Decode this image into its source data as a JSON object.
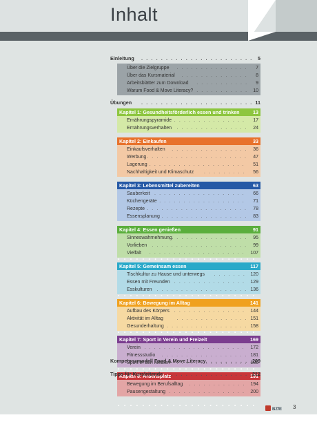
{
  "header": {
    "title": "Inhalt"
  },
  "entries": [
    {
      "title": "Einleitung",
      "page": "5"
    }
  ],
  "intro_items": [
    {
      "title": "Über die Zielgruppe",
      "page": "7"
    },
    {
      "title": "Über das Kursmaterial",
      "page": "8"
    },
    {
      "title": "Arbeitsblätter zum Download",
      "page": "9"
    },
    {
      "title": "Warum Food & Move Literacy?",
      "page": "10"
    }
  ],
  "uebungen": {
    "title": "Übungen",
    "page": "11"
  },
  "chapters": [
    {
      "title": "Kapitel 1: Gesundheitsförderlich essen und trinken",
      "page": "13",
      "color": "#8dc63f",
      "body": "#d4e9a7",
      "items": [
        {
          "title": "Ernährungspyramide",
          "page": "17"
        },
        {
          "title": "Ernährungsverhalten",
          "page": "24"
        }
      ]
    },
    {
      "title": "Kapitel 2: Einkaufen",
      "page": "33",
      "color": "#e8722c",
      "body": "#f3c9a5",
      "items": [
        {
          "title": "Einkaufsverhalten",
          "page": "36"
        },
        {
          "title": "Werbung",
          "page": "47"
        },
        {
          "title": "Lagerung",
          "page": "51"
        },
        {
          "title": "Nachhaltigkeit und Klimaschutz",
          "page": "56"
        }
      ]
    },
    {
      "title": "Kapitel 3: Lebensmittel zubereiten",
      "page": "63",
      "color": "#2559a6",
      "body": "#b3c8e6",
      "items": [
        {
          "title": "Sauberkeit",
          "page": "66"
        },
        {
          "title": "Küchengeräte",
          "page": "71"
        },
        {
          "title": "Rezepte",
          "page": "78"
        },
        {
          "title": "Essensplanung",
          "page": "83"
        }
      ]
    },
    {
      "title": "Kapitel 4: Essen genießen",
      "page": "91",
      "color": "#5aae3c",
      "body": "#bfdea8",
      "items": [
        {
          "title": "Sinneswahrnehmung",
          "page": "95"
        },
        {
          "title": "Vorlieben",
          "page": "99"
        },
        {
          "title": "Vielfalt",
          "page": "107"
        }
      ]
    },
    {
      "title": "Kapitel 5: Gemeinsam essen",
      "page": "117",
      "color": "#29a9c9",
      "body": "#b2dbe7",
      "items": [
        {
          "title": "Tischkultur zu Hause und unterwegs",
          "page": "120"
        },
        {
          "title": "Essen mit Freunden",
          "page": "129"
        },
        {
          "title": "Esskulturen",
          "page": "136"
        }
      ]
    },
    {
      "title": "Kapitel 6: Bewegung im Alltag",
      "page": "141",
      "color": "#f0a11f",
      "body": "#f6d9a2",
      "items": [
        {
          "title": "Aufbau des Körpers",
          "page": "144"
        },
        {
          "title": "Aktivität im Alltag",
          "page": "151"
        },
        {
          "title": "Gesunderhaltung",
          "page": "158"
        }
      ]
    },
    {
      "title": "Kapitel 7: Sport in Verein und Freizeit",
      "page": "169",
      "color": "#7b3d8f",
      "body": "#c9aecf",
      "items": [
        {
          "title": "Verein",
          "page": "172"
        },
        {
          "title": "Fitnessstudio",
          "page": "181"
        },
        {
          "title": "Sport in den Medien",
          "page": "185"
        }
      ]
    },
    {
      "title": "Kapitel 8: Arbeitsplatz",
      "page": "191",
      "color": "#c8363a",
      "body": "#e3a5a5",
      "items": [
        {
          "title": "Bewegung im Berufsalltag",
          "page": "194"
        },
        {
          "title": "Pausengestaltung",
          "page": "200"
        }
      ]
    }
  ],
  "end_entries": [
    {
      "title": "Kompetenzmodell Food & Move Literacy",
      "page": "209"
    },
    {
      "title": "Tipps für Kursleitende",
      "page": "212"
    }
  ],
  "footer": {
    "logo": "BZfE",
    "page_number": "3"
  }
}
